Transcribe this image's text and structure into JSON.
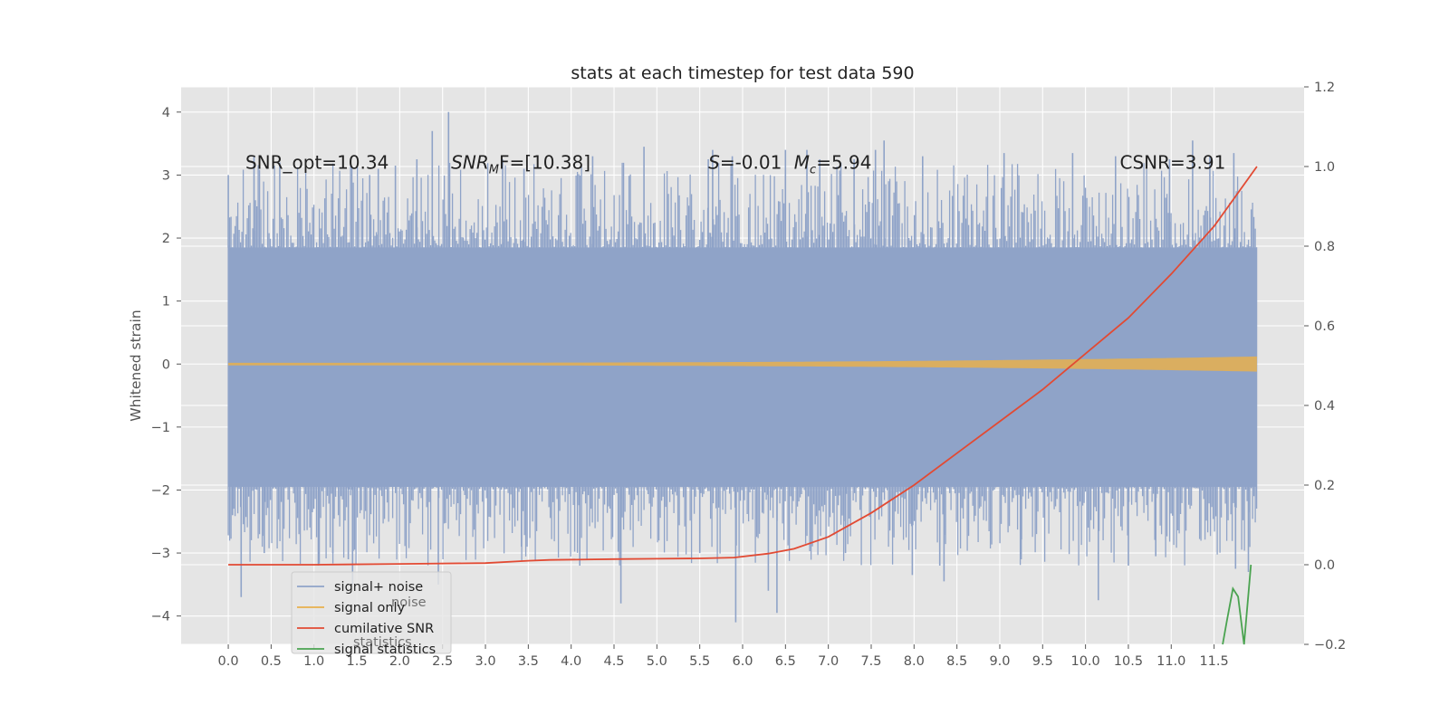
{
  "chart_data": {
    "type": "line",
    "title": "stats at each timestep for test data 590",
    "xlabel": "",
    "ylabel": "Whitened strain",
    "y2label": "",
    "xlim": [
      -0.55,
      12.55
    ],
    "ylim": [
      -4.45,
      4.4
    ],
    "y2lim": [
      -0.2,
      1.2
    ],
    "xticks": [
      "0.0",
      "0.5",
      "1.0",
      "1.5",
      "2.0",
      "2.5",
      "3.0",
      "3.5",
      "4.0",
      "4.5",
      "5.0",
      "5.5",
      "6.0",
      "6.5",
      "7.0",
      "7.5",
      "8.0",
      "8.5",
      "9.0",
      "9.5",
      "10.0",
      "10.5",
      "11.0",
      "11.5"
    ],
    "yticks": [
      "4",
      "3",
      "2",
      "1",
      "0",
      "−1",
      "−2",
      "−3",
      "−4"
    ],
    "y2ticks": [
      "1.2",
      "1.0",
      "0.8",
      "0.6",
      "0.4",
      "0.2",
      "0.0",
      "−0.2"
    ],
    "grid": true,
    "legend_position": "lower-left",
    "annotations": [
      {
        "text": "SNR_opt=10.34",
        "x": 0.2,
        "y": 3.2
      },
      {
        "text": "SNR",
        "sub": "M",
        "rest": "F=[10.38]",
        "x": 2.6,
        "y": 3.2
      },
      {
        "text": "S",
        "rest": "=-0.01",
        "x": 5.6,
        "y": 3.2
      },
      {
        "text": "M",
        "sub": "c",
        "rest": "=5.94",
        "x": 6.6,
        "y": 3.2
      },
      {
        "text": "CSNR=3.91",
        "x": 10.4,
        "y": 3.2
      }
    ],
    "series": [
      {
        "name": "signal+ noise",
        "color": "#8fa3c8",
        "axis": "left",
        "x_range": [
          0.0,
          12.0
        ],
        "band": [
          -1.95,
          1.85
        ],
        "extremes": [
          [
            0.0,
            3.0
          ],
          [
            0.05,
            -2.4
          ],
          [
            0.15,
            -3.7
          ],
          [
            0.3,
            3.3
          ],
          [
            0.42,
            -3.0
          ],
          [
            0.6,
            3.2
          ],
          [
            1.05,
            -3.2
          ],
          [
            1.22,
            -3.0
          ],
          [
            1.4,
            -3.1
          ],
          [
            1.45,
            -3.5
          ],
          [
            1.65,
            3.0
          ],
          [
            1.75,
            3.1
          ],
          [
            1.95,
            3.15
          ],
          [
            2.2,
            3.25
          ],
          [
            2.38,
            3.7
          ],
          [
            2.45,
            -3.5
          ],
          [
            2.57,
            4.0
          ],
          [
            3.2,
            3.25
          ],
          [
            3.42,
            -2.9
          ],
          [
            3.45,
            3.1
          ],
          [
            4.1,
            -3.2
          ],
          [
            4.25,
            3.3
          ],
          [
            4.58,
            -3.8
          ],
          [
            4.85,
            3.45
          ],
          [
            5.5,
            -3.0
          ],
          [
            5.6,
            3.25
          ],
          [
            5.65,
            3.4
          ],
          [
            5.88,
            3.3
          ],
          [
            5.92,
            -4.1
          ],
          [
            6.5,
            3.4
          ],
          [
            6.4,
            -3.95
          ],
          [
            6.3,
            -3.6
          ],
          [
            6.75,
            3.4
          ],
          [
            6.9,
            3.25
          ],
          [
            7.2,
            -3.0
          ],
          [
            7.3,
            3.25
          ],
          [
            7.55,
            3.4
          ],
          [
            7.65,
            3.55
          ],
          [
            7.98,
            -3.35
          ],
          [
            8.1,
            3.3
          ],
          [
            8.3,
            -3.2
          ],
          [
            8.35,
            -3.45
          ],
          [
            9.05,
            3.35
          ],
          [
            9.25,
            -3.1
          ],
          [
            9.85,
            3.35
          ],
          [
            10.15,
            -3.75
          ],
          [
            10.35,
            3.3
          ],
          [
            10.5,
            -3.2
          ],
          [
            10.82,
            -3.05
          ],
          [
            10.98,
            3.25
          ],
          [
            11.25,
            3.55
          ],
          [
            11.45,
            3.3
          ],
          [
            11.73,
            3.35
          ],
          [
            11.75,
            -3.25
          ],
          [
            11.9,
            -3.3
          ]
        ]
      },
      {
        "name": "signal only",
        "color": "#e8b04d",
        "axis": "left",
        "x_range": [
          0.0,
          12.0
        ],
        "amplitude_start": 0.02,
        "amplitude_end": 0.12
      },
      {
        "name": "cumilative SNR",
        "color": "#e24a33",
        "axis": "right",
        "x": [
          0.0,
          1.0,
          2.0,
          3.0,
          3.5,
          3.75,
          4.5,
          5.0,
          5.5,
          5.9,
          6.3,
          6.6,
          7.0,
          7.5,
          8.0,
          8.5,
          9.0,
          9.5,
          10.0,
          10.5,
          11.0,
          11.5,
          12.0
        ],
        "values": [
          0.0,
          0.0,
          0.002,
          0.004,
          0.01,
          0.012,
          0.014,
          0.015,
          0.016,
          0.018,
          0.028,
          0.04,
          0.07,
          0.13,
          0.2,
          0.28,
          0.36,
          0.44,
          0.53,
          0.62,
          0.73,
          0.85,
          1.0
        ]
      },
      {
        "name": "signal statistics",
        "color": "#348abd",
        "draw_color": "#4aa350",
        "axis": "right",
        "x": [
          11.6,
          11.65,
          11.72,
          11.78,
          11.85,
          11.93
        ],
        "values": [
          -0.2,
          -0.14,
          -0.06,
          -0.08,
          -0.21,
          0.0
        ]
      }
    ]
  },
  "legend": {
    "items": [
      {
        "label": "signal+ noise",
        "color": "#8fa3c8"
      },
      {
        "label": "signal only",
        "color": "#e8b04d"
      },
      {
        "label": "cumilative SNR",
        "color": "#e24a33"
      },
      {
        "label": "signal statistics",
        "color": "#4aa350"
      }
    ],
    "ghost_items": [
      "noise",
      "statistics"
    ]
  },
  "colors": {
    "axes_background": "#e5e5e5",
    "grid": "#ffffff",
    "tick_text": "#555555"
  }
}
